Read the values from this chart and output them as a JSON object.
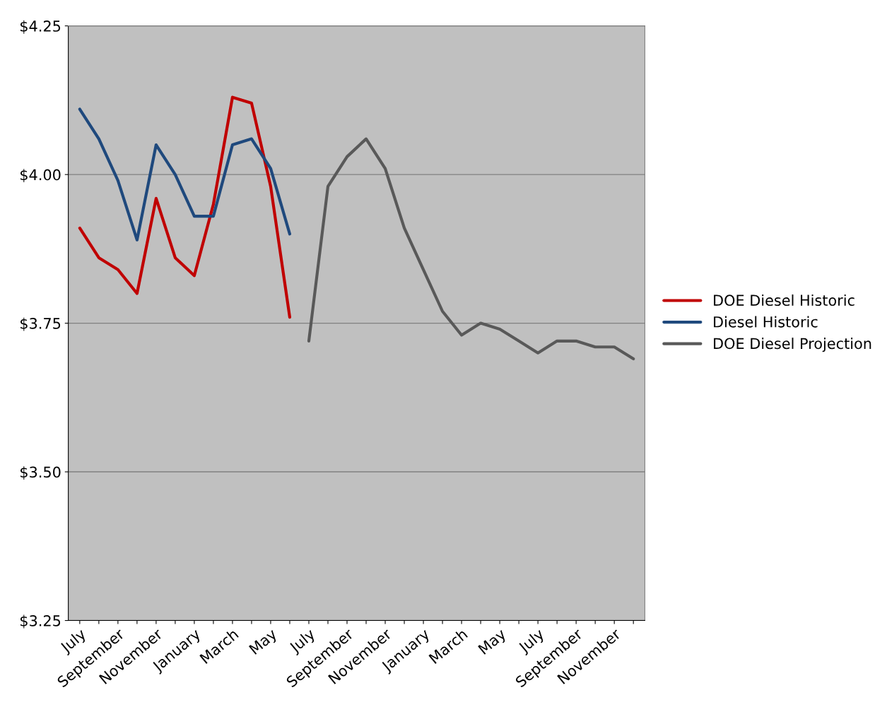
{
  "chart_data": {
    "type": "line",
    "categories": [
      "July",
      null,
      "September",
      null,
      "November",
      null,
      "January",
      null,
      "March",
      null,
      "May",
      null,
      "July",
      null,
      "September",
      null,
      "November",
      null,
      "January",
      null,
      "March",
      null,
      "May",
      null,
      "July",
      null,
      "September",
      null,
      "November",
      null
    ],
    "series": [
      {
        "name": "DOE Diesel Historic",
        "color": "#c00000",
        "values": [
          3.91,
          3.86,
          3.84,
          3.8,
          3.96,
          3.86,
          3.83,
          3.95,
          4.13,
          4.12,
          3.98,
          3.76,
          null,
          null,
          null,
          null,
          null,
          null,
          null,
          null,
          null,
          null,
          null,
          null,
          null,
          null,
          null,
          null,
          null,
          null
        ]
      },
      {
        "name": "Diesel Historic",
        "color": "#1f497d",
        "values": [
          4.11,
          4.06,
          3.99,
          3.89,
          4.05,
          4.0,
          3.93,
          3.93,
          4.05,
          4.06,
          4.01,
          3.9,
          null,
          null,
          null,
          null,
          null,
          null,
          null,
          null,
          null,
          null,
          null,
          null,
          null,
          null,
          null,
          null,
          null,
          null
        ]
      },
      {
        "name": "DOE Diesel Projection",
        "color": "#595959",
        "values": [
          null,
          null,
          null,
          null,
          null,
          null,
          null,
          null,
          null,
          null,
          null,
          null,
          3.72,
          3.98,
          4.03,
          4.06,
          4.01,
          3.91,
          3.84,
          3.77,
          3.73,
          3.75,
          3.74,
          3.72,
          3.7,
          3.72,
          3.72,
          3.71,
          3.71,
          3.69
        ]
      }
    ],
    "ylim": [
      3.25,
      4.25
    ],
    "yticks": [
      {
        "value": 3.25,
        "label": "$3.25"
      },
      {
        "value": 3.5,
        "label": "$3.50"
      },
      {
        "value": 3.75,
        "label": "$3.75"
      },
      {
        "value": 4.0,
        "label": "$4.00"
      },
      {
        "value": 4.25,
        "label": "$4.25"
      }
    ],
    "grid": "y",
    "legend": "right",
    "marker": "none",
    "line_style": "solid"
  }
}
